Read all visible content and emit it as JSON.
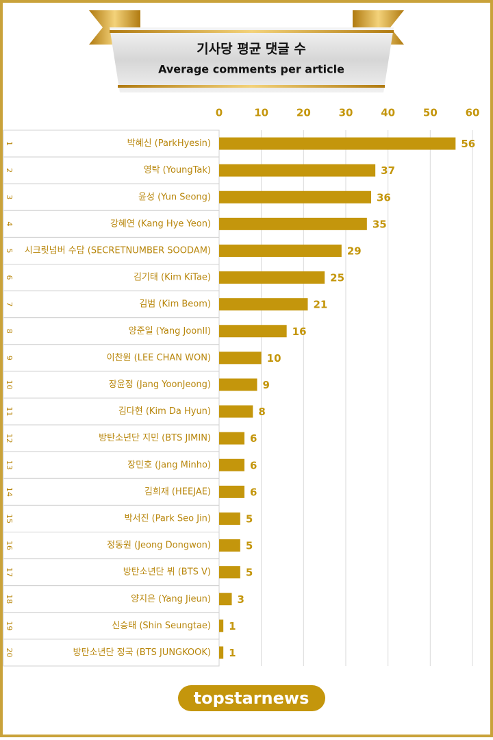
{
  "chart_data": {
    "type": "bar",
    "orientation": "horizontal",
    "title": "기사당 평균 댓글 수",
    "subtitle": "Average comments per article",
    "ranks": [
      1,
      2,
      3,
      4,
      5,
      6,
      7,
      8,
      9,
      10,
      11,
      12,
      13,
      14,
      15,
      16,
      17,
      18,
      19,
      20
    ],
    "categories": [
      "박혜신 (ParkHyesin)",
      "영탁 (YoungTak)",
      "윤성 (Yun Seong)",
      "강혜연 (Kang Hye Yeon)",
      "시크릿넘버 수담 (SECRETNUMBER SOODAM)",
      "김기태 (Kim KiTae)",
      "김범 (Kim Beom)",
      "양준일 (Yang JoonIl)",
      "이찬원 (LEE CHAN WON)",
      "장윤정 (Jang YoonJeong)",
      "김다현 (Kim Da Hyun)",
      "방탄소년단 지민 (BTS JIMIN)",
      "장민호 (Jang Minho)",
      "김희재 (HEEJAE)",
      "박서진 (Park Seo Jin)",
      "정동원 (Jeong Dongwon)",
      "방탄소년단 뷔 (BTS V)",
      "양지은 (Yang Jieun)",
      "신승태 (Shin Seungtae)",
      "방탄소년단 정국 (BTS JUNGKOOK)"
    ],
    "values": [
      56,
      37,
      36,
      35,
      29,
      25,
      21,
      16,
      10,
      9,
      8,
      6,
      6,
      6,
      5,
      5,
      5,
      3,
      1,
      1
    ],
    "color": "#c4960c",
    "xlim": [
      0,
      60
    ],
    "xticks": [
      0,
      10,
      20,
      30,
      40,
      50,
      60
    ],
    "grid": true,
    "logo": "topstarnews"
  }
}
